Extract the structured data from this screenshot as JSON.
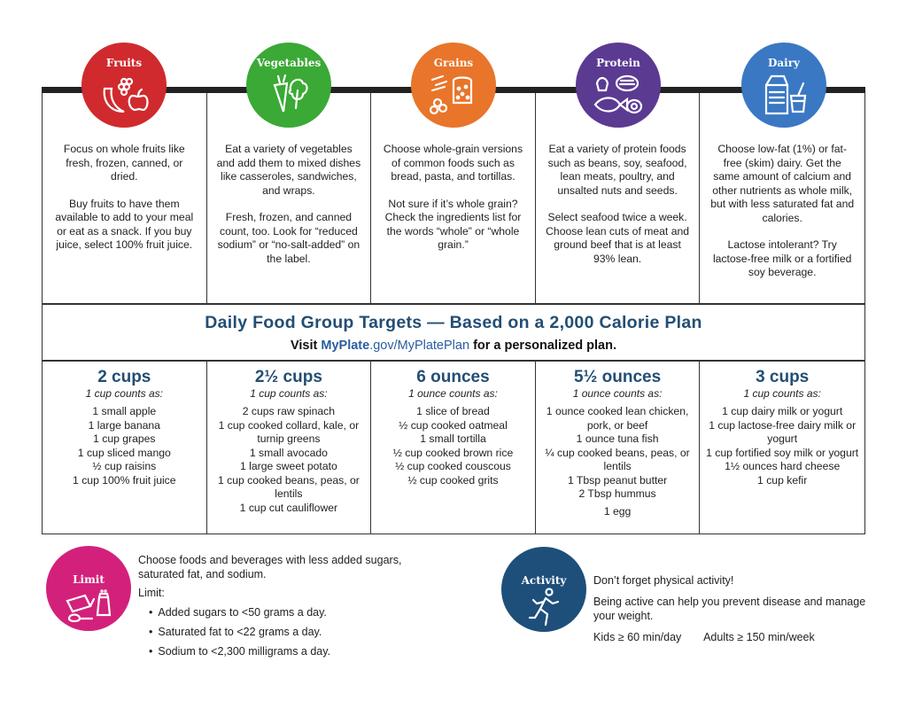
{
  "groups": [
    {
      "name": "Fruits",
      "color": "#d02a2e",
      "icon": "fruits-icon",
      "desc": [
        "Focus on whole fruits like fresh, frozen, canned, or dried.",
        "Buy fruits to have them available to add to your meal or eat as a snack. If you buy juice, select 100% fruit juice."
      ],
      "amount": "2 cups",
      "counts_as": "1 cup counts as:",
      "items": [
        "1 small apple",
        "1 large banana",
        "1 cup grapes",
        "1 cup sliced mango",
        "½ cup raisins",
        "1 cup 100% fruit juice"
      ]
    },
    {
      "name": "Vegetables",
      "color": "#3aa935",
      "icon": "vegetables-icon",
      "desc": [
        "Eat a variety of vegetables and add them to mixed dishes like casseroles, sandwiches, and wraps.",
        "Fresh, frozen, and canned count, too. Look for “reduced sodium” or “no-salt-added” on the label."
      ],
      "amount": "2½ cups",
      "counts_as": "1 cup counts as:",
      "items": [
        "2 cups raw spinach",
        "1 cup cooked collard, kale, or turnip greens",
        "1 small avocado",
        "1 large sweet potato",
        "1 cup cooked beans, peas, or lentils",
        "1 cup cut cauliflower"
      ]
    },
    {
      "name": "Grains",
      "color": "#e8752a",
      "icon": "grains-icon",
      "desc": [
        "Choose whole-grain versions of common foods such as bread, pasta, and tortillas.",
        "Not sure if it’s whole grain? Check the ingredients list for the words “whole” or “whole grain.”"
      ],
      "amount": "6 ounces",
      "counts_as": "1 ounce counts as:",
      "items": [
        "1 slice of bread",
        "½ cup cooked oatmeal",
        "1 small tortilla",
        "½ cup cooked brown rice",
        "½ cup cooked couscous",
        "½ cup cooked grits"
      ]
    },
    {
      "name": "Protein",
      "color": "#5b3a92",
      "icon": "protein-icon",
      "desc": [
        "Eat a variety of protein foods such as beans, soy, seafood, lean meats, poultry, and unsalted nuts and seeds.",
        "Select seafood twice a week. Choose lean cuts of meat and ground beef that is at least 93% lean."
      ],
      "amount": "5½ ounces",
      "counts_as": "1 ounce counts as:",
      "items": [
        "1 ounce cooked lean chicken, pork, or beef",
        "1 ounce tuna fish",
        "¼ cup cooked beans, peas, or lentils",
        "1 Tbsp peanut butter",
        "2 Tbsp hummus",
        "1 egg"
      ]
    },
    {
      "name": "Dairy",
      "color": "#3a78c3",
      "icon": "dairy-icon",
      "desc": [
        "Choose low-fat (1%) or fat-free (skim) dairy. Get the same amount of calcium and other nutrients as whole milk, but with less saturated fat and calories.",
        "Lactose intolerant? Try lactose-free milk or a fortified soy beverage."
      ],
      "amount": "3 cups",
      "counts_as": "1 cup counts as:",
      "items": [
        "1 cup dairy milk or yogurt",
        "1 cup lactose-free dairy milk or yogurt",
        "1 cup fortified soy milk or yogurt",
        "1½ ounces hard cheese",
        "1 cup kefir"
      ]
    }
  ],
  "band": {
    "title": "Daily Food Group Targets — Based on a 2,000 Calorie Plan",
    "visit": "Visit",
    "link_bold": "MyPlate",
    "link_rest": ".gov/MyPlatePlan",
    "suffix": "for a personalized plan."
  },
  "limit": {
    "title": "Limit",
    "color": "#d3217b",
    "icon": "limit-icon",
    "intro": "Choose foods and beverages with less added sugars, saturated fat, and sodium.",
    "label": "Limit:",
    "items": [
      "Added sugars to <50 grams a day.",
      "Saturated fat to <22 grams a day.",
      "Sodium to <2,300 milligrams a day."
    ]
  },
  "activity": {
    "title": "Activity",
    "color": "#1d4f7a",
    "icon": "runner-icon",
    "line1": "Don’t forget physical activity!",
    "line2": "Being active can help you prevent disease and manage your weight.",
    "kids": "Kids ≥ 60 min/day",
    "adults": "Adults ≥ 150 min/week"
  }
}
